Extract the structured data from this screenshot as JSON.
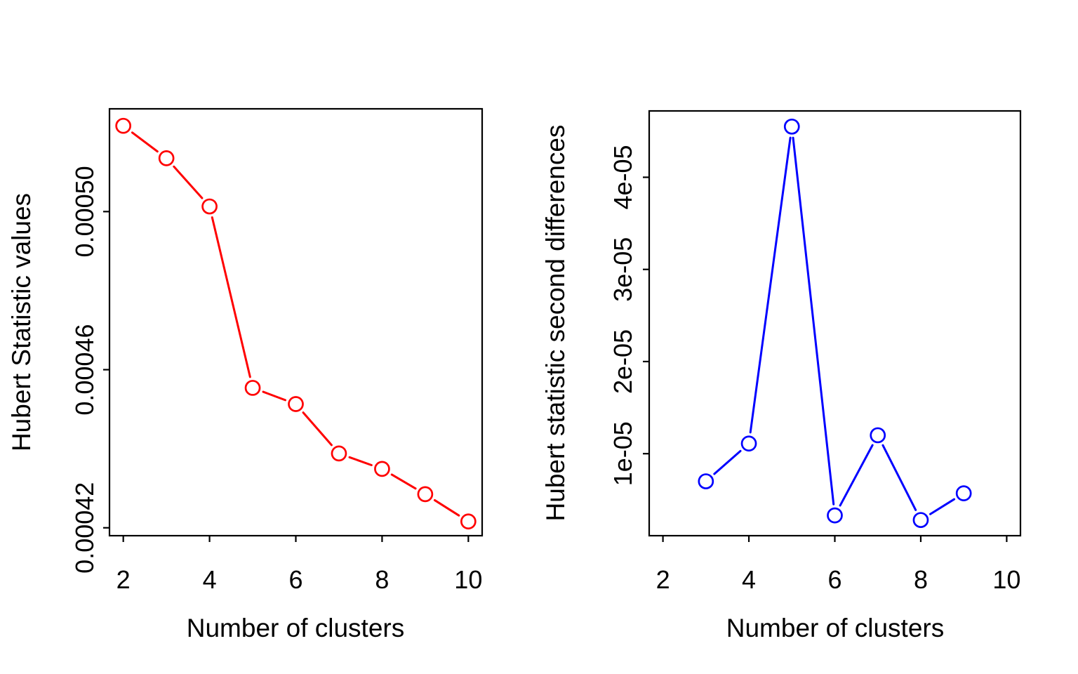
{
  "chart_data": [
    {
      "type": "line",
      "panel": "left",
      "title": "",
      "xlabel": "Number of clusters",
      "ylabel": "Hubert Statistic values",
      "line_color": "#FF0000",
      "marker": "open-circle",
      "line_style": "points-with-line-gaps",
      "grid": false,
      "x": [
        2,
        3,
        4,
        5,
        6,
        7,
        8,
        9,
        10
      ],
      "y": [
        0.0005217,
        0.0005135,
        0.0005013,
        0.0004554,
        0.0004513,
        0.0004388,
        0.0004349,
        0.0004285,
        0.0004216
      ],
      "xlim": [
        1.68,
        10.32
      ],
      "ylim": [
        0.000418,
        0.000526
      ],
      "xticks": [
        2,
        4,
        6,
        8,
        10
      ],
      "xtick_labels": [
        "2",
        "4",
        "6",
        "8",
        "10"
      ],
      "yticks": [
        0.00042,
        0.00046,
        0.0005
      ],
      "ytick_labels": [
        "0.00042",
        "0.00046",
        "0.00050"
      ]
    },
    {
      "type": "line",
      "panel": "right",
      "title": "",
      "xlabel": "Number of clusters",
      "ylabel": "Hubert statistic second differences",
      "line_color": "#0000FF",
      "marker": "open-circle",
      "line_style": "points-with-line-gaps",
      "grid": false,
      "x": [
        3,
        4,
        5,
        6,
        7,
        8,
        9
      ],
      "y": [
        7e-06,
        1.11e-05,
        4.55e-05,
        3.3e-06,
        1.2e-05,
        2.8e-06,
        5.7e-06
      ],
      "xlim": [
        1.68,
        10.32
      ],
      "ylim": [
        1.1e-06,
        4.72e-05
      ],
      "xticks": [
        2,
        4,
        6,
        8,
        10
      ],
      "xtick_labels": [
        "2",
        "4",
        "6",
        "8",
        "10"
      ],
      "yticks": [
        1e-05,
        2e-05,
        3e-05,
        4e-05
      ],
      "ytick_labels": [
        "1e-05",
        "2e-05",
        "3e-05",
        "4e-05"
      ]
    }
  ],
  "axis_color": "#000000",
  "background_color": "#FFFFFF"
}
